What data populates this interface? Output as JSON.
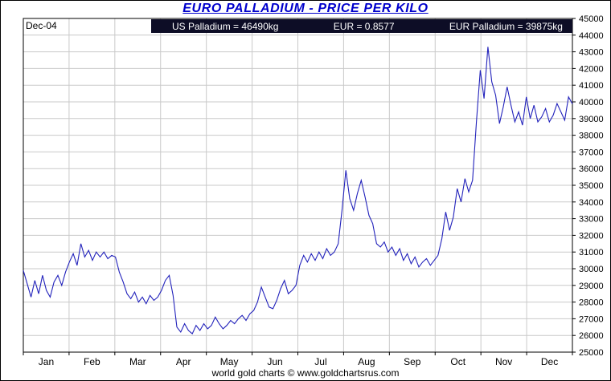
{
  "title": "EURO PALLADIUM - PRICE PER KILO",
  "header": {
    "date": "Dec-04",
    "us_palladium": "US Palladium = 46490kg",
    "eur_rate": "EUR = 0.8577",
    "eur_palladium": "EUR Palladium = 39875kg"
  },
  "footer": "world gold charts © www.goldchartsrus.com",
  "colors": {
    "title": "#0000cc",
    "line": "#2222bb",
    "grid": "#c9c9c9",
    "bar_bg": "#0d0d26",
    "bar_text": "#ffffff",
    "axis": "#000000"
  },
  "chart_data": {
    "type": "line",
    "title": "EURO PALLADIUM - PRICE PER KILO",
    "x_months": [
      "Jan",
      "Feb",
      "Mar",
      "Apr",
      "May",
      "Jun",
      "Jul",
      "Aug",
      "Sep",
      "Oct",
      "Nov",
      "Dec"
    ],
    "ylim": [
      25000,
      45000
    ],
    "y_tick_step": 1000,
    "grid": true,
    "legend": "none",
    "series": [
      {
        "name": "EUR Palladium price per kilo",
        "values": [
          29900,
          29100,
          28300,
          29300,
          28500,
          29600,
          28700,
          28300,
          29200,
          29600,
          29000,
          29800,
          30400,
          30900,
          30200,
          31500,
          30700,
          31100,
          30500,
          31000,
          30700,
          31000,
          30600,
          30800,
          30700,
          29800,
          29200,
          28500,
          28200,
          28600,
          28000,
          28300,
          27900,
          28400,
          28100,
          28300,
          28700,
          29300,
          29600,
          28400,
          26500,
          26200,
          26700,
          26300,
          26100,
          26600,
          26300,
          26700,
          26400,
          26600,
          27100,
          26700,
          26400,
          26600,
          26900,
          26700,
          27000,
          27200,
          26900,
          27300,
          27500,
          28000,
          28900,
          28300,
          27700,
          27600,
          28100,
          28800,
          29300,
          28500,
          28700,
          29000,
          30200,
          30800,
          30400,
          30900,
          30500,
          31000,
          30600,
          31200,
          30800,
          31000,
          31500,
          33500,
          35900,
          34200,
          33500,
          34500,
          35300,
          34300,
          33200,
          32700,
          31500,
          31300,
          31600,
          31000,
          31300,
          30800,
          31200,
          30500,
          30900,
          30300,
          30700,
          30100,
          30400,
          30600,
          30200,
          30500,
          30800,
          31800,
          33400,
          32300,
          33100,
          34800,
          34000,
          35400,
          34600,
          35300,
          38800,
          41900,
          40200,
          43300,
          41200,
          40400,
          38700,
          39700,
          40900,
          39800,
          38800,
          39400,
          38600,
          40300,
          39000,
          39800,
          38800,
          39100,
          39600,
          38800,
          39200,
          39900,
          39400,
          38900,
          40300,
          39875
        ]
      }
    ]
  }
}
